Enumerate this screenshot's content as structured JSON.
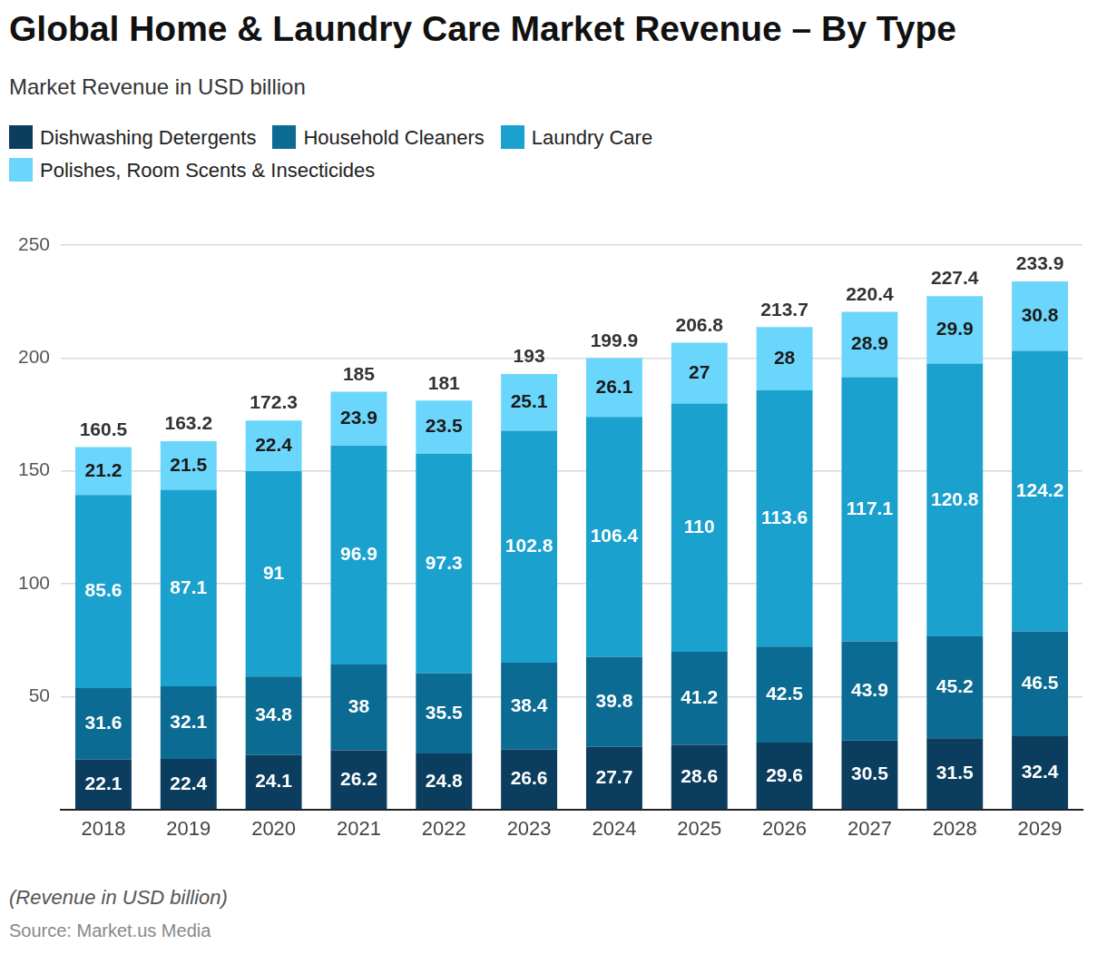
{
  "chart_data": {
    "type": "bar",
    "title": "Global Home & Laundry Care Market Revenue – By Type",
    "subtitle": "Market Revenue in USD billion",
    "note": "(Revenue in USD billion)",
    "source": "Source: Market.us Media",
    "categories": [
      "2018",
      "2019",
      "2020",
      "2021",
      "2022",
      "2023",
      "2024",
      "2025",
      "2026",
      "2027",
      "2028",
      "2029"
    ],
    "series": [
      {
        "name": "Dishwashing Detergents",
        "color": "#0b3d5e",
        "values": [
          22.1,
          22.4,
          24.1,
          26.2,
          24.8,
          26.6,
          27.7,
          28.6,
          29.6,
          30.5,
          31.5,
          32.4
        ]
      },
      {
        "name": "Household Cleaners",
        "color": "#0c6b93",
        "values": [
          31.6,
          32.1,
          34.8,
          38,
          35.5,
          38.4,
          39.8,
          41.2,
          42.5,
          43.9,
          45.2,
          46.5
        ]
      },
      {
        "name": "Laundry Care",
        "color": "#1ba1ce",
        "values": [
          85.6,
          87.1,
          91,
          96.9,
          97.3,
          102.8,
          106.4,
          110,
          113.6,
          117.1,
          120.8,
          124.2
        ]
      },
      {
        "name": "Polishes, Room Scents & Insecticides",
        "color": "#6bd6fb",
        "values": [
          21.2,
          21.5,
          22.4,
          23.9,
          23.5,
          25.1,
          26.1,
          27,
          28,
          28.9,
          29.9,
          30.8
        ]
      }
    ],
    "totals": [
      160.5,
      163.2,
      172.3,
      185,
      181,
      193,
      199.9,
      206.8,
      213.7,
      220.4,
      227.4,
      233.9
    ],
    "ylim": [
      0,
      250
    ],
    "yticks": [
      50,
      100,
      150,
      200,
      250
    ],
    "grid": true,
    "stacked": true,
    "data_labels": true,
    "legend": "top"
  }
}
